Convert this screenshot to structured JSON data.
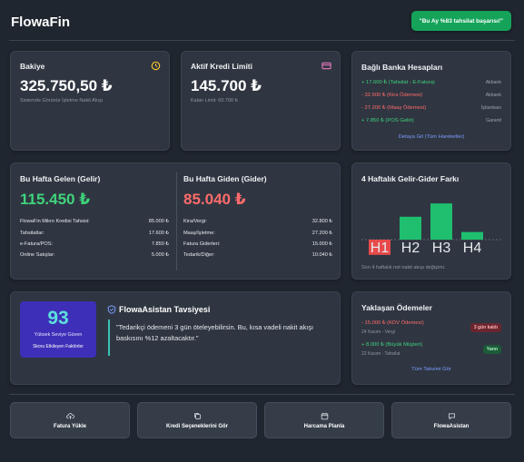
{
  "app": {
    "name": "FlowaFin"
  },
  "toast": {
    "text": "\"Bu Ay %83 tahsilat başarısı!\""
  },
  "balance": {
    "title": "Bakiye",
    "amount": "325.750,50 ₺",
    "caption": "Sistemde Görünür İşletme Nakit Akışı",
    "icon": "clock-icon",
    "icon_color": "#f0c030"
  },
  "credit": {
    "title": "Aktif Kredi Limiti",
    "amount": "145.700 ₺",
    "caption": "Kalan Limit: 60.700 ₺",
    "icon": "credit-card-icon",
    "icon_color": "#e879c0"
  },
  "banks": {
    "title": "Bağlı Banka Hesapları",
    "rows": [
      {
        "text": "+ 17.600 ₺ (Tahsilat - E-Fatura)",
        "bank": "Akbank",
        "type": "pos"
      },
      {
        "text": "- 32.600 ₺ (Kira Ödemesi)",
        "bank": "Akbank",
        "type": "neg"
      },
      {
        "text": "- 27.200 ₺ (Maaş Ödemesi)",
        "bank": "İşbankası",
        "type": "neg"
      },
      {
        "text": "+ 7.850 ₺ (POS Geliri)",
        "bank": "Garanti",
        "type": "pos"
      }
    ],
    "link": "Detaya Git (Tüm Hareketler)"
  },
  "income": {
    "title": "Bu Hafta Gelen (Gelir)",
    "amount": "115.450 ₺",
    "color": "#3fd37b",
    "rows": [
      {
        "label": "FlowaFin Mikro Kredisi Tahsisi:",
        "value": "85.000 ₺"
      },
      {
        "label": "Tahsilatlar:",
        "value": "17.600 ₺"
      },
      {
        "label": "e-Fatura/POS:",
        "value": "7.850 ₺"
      },
      {
        "label": "Online Satışlar:",
        "value": "5.000 ₺"
      }
    ]
  },
  "expense": {
    "title": "Bu Hafta Giden (Gider)",
    "amount": "85.040 ₺",
    "color": "#ff6b6b",
    "rows": [
      {
        "label": "Kira/Vergi:",
        "value": "32.800 ₺"
      },
      {
        "label": "Maaş/İşletme:",
        "value": "27.200 ₺"
      },
      {
        "label": "Fatura Giderleri:",
        "value": "15.000 ₺"
      },
      {
        "label": "Tedarik/Diğer:",
        "value": "10.040 ₺"
      }
    ]
  },
  "chart_data": {
    "type": "bar",
    "title": "4 Haftalık Gelir-Gider Farkı",
    "categories": [
      "H1",
      "H2",
      "H3",
      "H4"
    ],
    "values": [
      -8,
      12,
      19,
      4
    ],
    "colors": {
      "positive": "#1fbf6f",
      "negative": "#e84a4a"
    },
    "caption": "Son 4 haftalık net nakit akışı değişimi."
  },
  "score": {
    "value": "93",
    "label": "Yüksek Seviye Güven",
    "sub": "Skoru Etkileyen Faktörler"
  },
  "advice": {
    "title": "FlowaAsistan Tavsiyesi",
    "quote": "\"Tedarikçi ödemeni 3 gün öteleyebilirsin. Bu, kısa vadeli nakit akışı baskısını %12 azaltacaktır.\""
  },
  "payments": {
    "title": "Yaklaşan Ödemeler",
    "items": [
      {
        "text": "- 15.000 ₺ (KDV Ödemesi)",
        "date": "24 Kasım - Vergi",
        "badge": "3 gün kaldı",
        "type": "neg"
      },
      {
        "text": "+ 8.000 ₺ (Büyük Müşteri)",
        "date": "22 Kasım - Tahsilat",
        "badge": "Yarın",
        "type": "pos"
      }
    ],
    "link": "Tüm Takvimi Gör"
  },
  "actions": [
    {
      "label": "Fatura Yükle",
      "icon": "cloud-upload-icon"
    },
    {
      "label": "Kredi Seçeneklerini Gör",
      "icon": "copy-icon"
    },
    {
      "label": "Harcama Planla",
      "icon": "calendar-icon"
    },
    {
      "label": "FlowaAsistan",
      "icon": "chat-icon"
    }
  ]
}
